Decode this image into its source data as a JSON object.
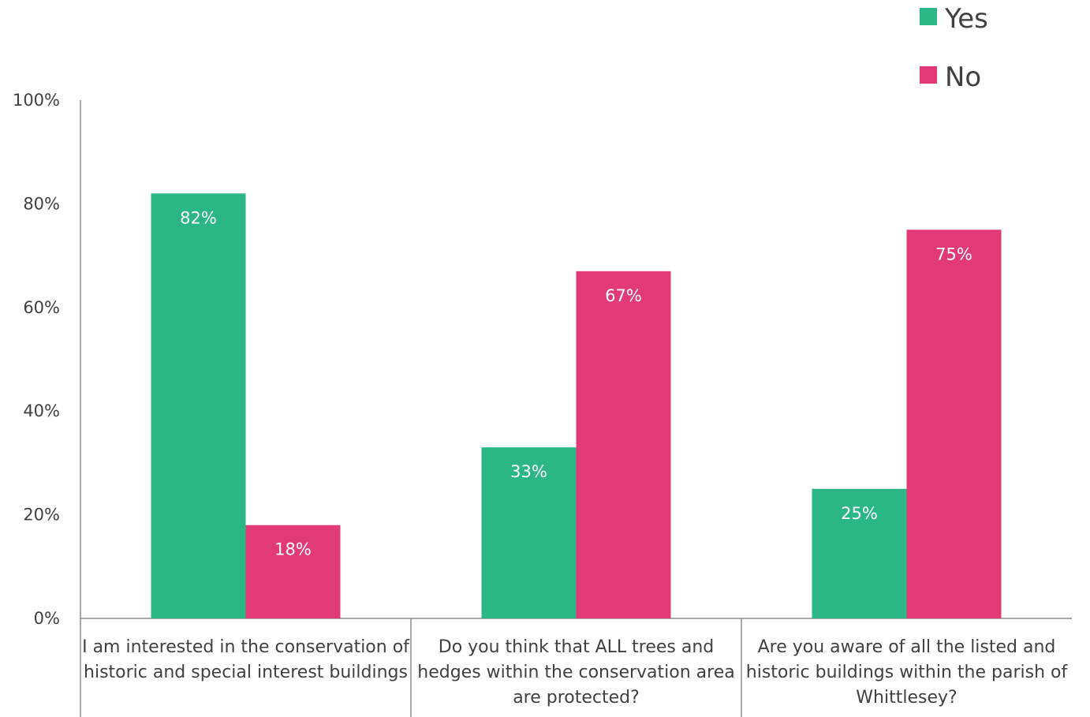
{
  "chart_data": {
    "type": "bar",
    "categories": [
      [
        "I am interested in the conservation of",
        "historic and special interest buildings"
      ],
      [
        "Do you think that ALL trees and",
        "hedges within the conservation area",
        "are protected?"
      ],
      [
        "Are you aware of all the listed and",
        "historic buildings within the parish of",
        "Whittlesey?"
      ]
    ],
    "series": [
      {
        "name": "Yes",
        "values": [
          82,
          33,
          25
        ],
        "labels": [
          "82%",
          "33%",
          "25%"
        ],
        "color": "#2bb686"
      },
      {
        "name": "No",
        "values": [
          18,
          67,
          75
        ],
        "labels": [
          "18%",
          "67%",
          "75%"
        ],
        "color": "#e23a76"
      }
    ],
    "ylim": [
      0,
      100
    ],
    "yticks": [
      0,
      20,
      40,
      60,
      80,
      100
    ],
    "ytick_labels": [
      "0%",
      "20%",
      "40%",
      "60%",
      "80%",
      "100%"
    ],
    "legend": "top-right",
    "grid": false,
    "axis_color": "#8c8c8c",
    "text_color": "#404040"
  }
}
